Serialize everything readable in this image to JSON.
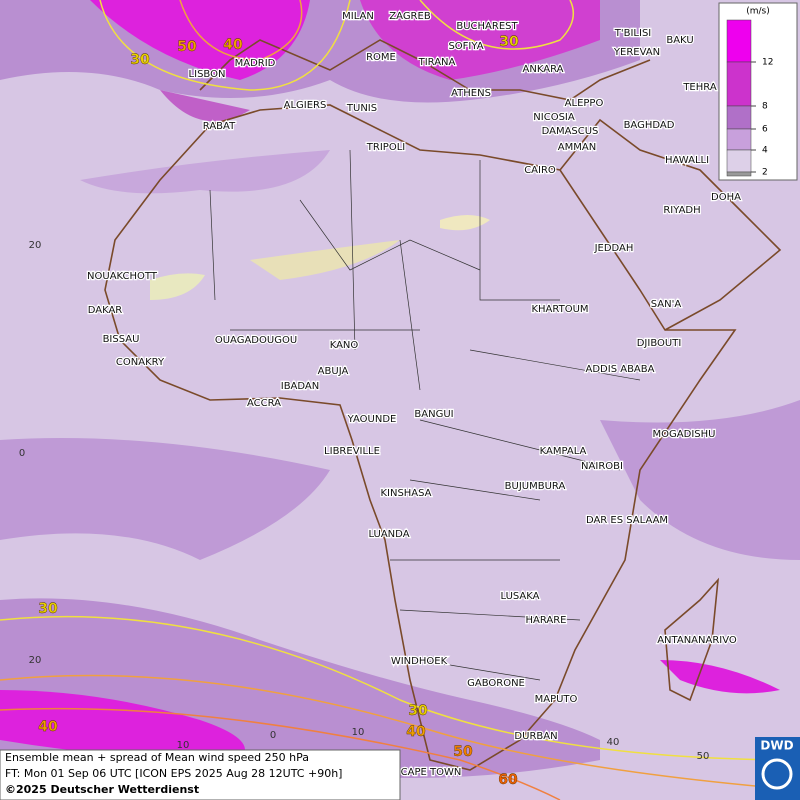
{
  "map": {
    "cities": [
      "MILAN",
      "ZAGREB",
      "BUCHAREST",
      "T'BILISI",
      "BAKU",
      "YEREVAN",
      "MADRID",
      "LISBON",
      "ROME",
      "SOFIYA",
      "TIRANA",
      "ANKARA",
      "TEHRA",
      "ALGIERS",
      "TUNIS",
      "ATHENS",
      "ALEPPO",
      "RABAT",
      "NICOSIA",
      "BAGHDAD",
      "DAMASCUS",
      "TRIPOLI",
      "AMMAN",
      "HAWALLI",
      "CAIRO",
      "DOHA",
      "RIYADH",
      "JEDDAH",
      "NOUAKCHOTT",
      "SAN'A",
      "DAKAR",
      "KHARTOUM",
      "BISSAU",
      "OUAGADOUGOU",
      "KANO",
      "DJIBOUTI",
      "CONAKRY",
      "ABUJA",
      "ADDIS ABABA",
      "IBADAN",
      "ACCRA",
      "BANGUI",
      "YAOUNDE",
      "MOGADISHU",
      "LIBREVILLE",
      "KAMPALA",
      "NAIROBI",
      "KINSHASA",
      "BUJUMBURA",
      "DAR ES SALAAM",
      "LUANDA",
      "LUSAKA",
      "HARARE",
      "ANTANANARIVO",
      "WINDHOEK",
      "GABORONE",
      "MAPUTO",
      "DURBAN",
      "CAPE TOWN"
    ],
    "contour_labels": [
      {
        "value": 50,
        "color": "#f0a000"
      },
      {
        "value": 40,
        "color": "#f0a000"
      },
      {
        "value": 30,
        "color": "#e8d000"
      },
      {
        "value": 30,
        "color": "#e8d000"
      },
      {
        "value": 30,
        "color": "#e8d000"
      },
      {
        "value": 40,
        "color": "#f0a000"
      },
      {
        "value": 30,
        "color": "#e8d000"
      },
      {
        "value": 40,
        "color": "#f0a000"
      },
      {
        "value": 50,
        "color": "#f08000"
      },
      {
        "value": 60,
        "color": "#f06000"
      }
    ],
    "grid_labels": [
      "20",
      "0",
      "20",
      "10",
      "0",
      "10",
      "40",
      "50"
    ]
  },
  "legend": {
    "unit": "(m/s)",
    "ticks": [
      12,
      8,
      6,
      4,
      2
    ],
    "colors": [
      "#ee00ee",
      "#cc33cc",
      "#b070c8",
      "#c8a0dc",
      "#ddd0e8",
      "#999999"
    ]
  },
  "footer": {
    "line1": "Ensemble mean + spread of Mean wind speed 250 hPa",
    "line2": "FT: Mon 01 Sep 06 UTC [ICON EPS 2025 Aug 28 12UTC +90h]",
    "line3": "©2025 Deutscher Wetterdienst"
  },
  "logo": "DWD"
}
